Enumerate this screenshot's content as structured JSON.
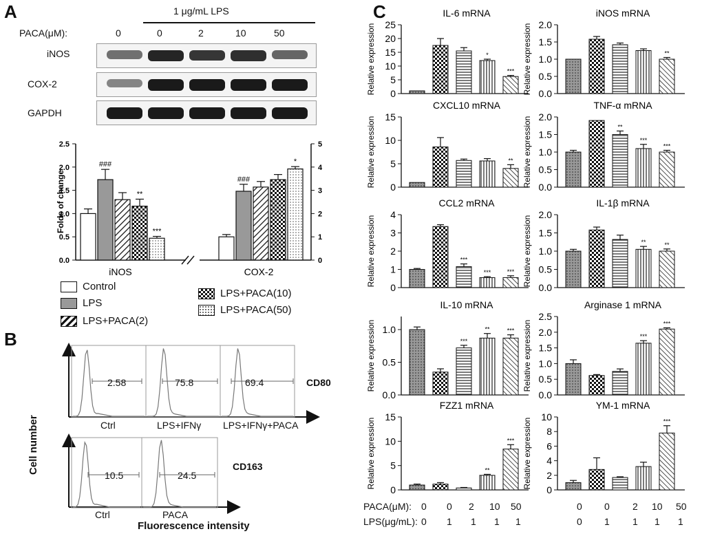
{
  "panel_labels": {
    "a": "A",
    "b": "B",
    "c": "C"
  },
  "western": {
    "lps_header": "1 μg/mL LPS",
    "paca_label": "PACA(μM):",
    "doses": [
      "0",
      "0",
      "2",
      "10",
      "50"
    ],
    "blots": [
      {
        "name": "iNOS",
        "intensity": [
          0.55,
          0.9,
          0.82,
          0.85,
          0.6
        ]
      },
      {
        "name": "COX-2",
        "intensity": [
          0.45,
          0.95,
          0.95,
          0.95,
          0.95
        ]
      },
      {
        "name": "GAPDH",
        "intensity": [
          0.95,
          0.95,
          0.95,
          0.95,
          0.95
        ]
      }
    ]
  },
  "legend": {
    "items": [
      "Control",
      "LPS",
      "LPS+PACA(2)",
      "LPS+PACA(10)",
      "LPS+PACA(50)"
    ]
  },
  "flow": {
    "y_label": "Cell number",
    "x_label": "Fluorescence intensity",
    "cd80": {
      "marker": "CD80",
      "values": [
        "2.58",
        "75.8",
        "69.4"
      ],
      "labels": [
        "Ctrl",
        "LPS+IFNγ",
        "LPS+IFNγ+PACA"
      ]
    },
    "cd163": {
      "marker": "CD163",
      "values": [
        "10.5",
        "24.5"
      ],
      "labels": [
        "Ctrl",
        "PACA"
      ]
    }
  },
  "bottom_axis": {
    "paca_label": "PACA(μM):",
    "lps_label": "LPS(μg/mL):",
    "paca": [
      "0",
      "0",
      "2",
      "10",
      "50"
    ],
    "lps": [
      "0",
      "1",
      "1",
      "1",
      "1"
    ]
  },
  "chart_data": [
    {
      "type": "bar",
      "title": "",
      "ylabel": "Folds of change",
      "categories": [
        "iNOS",
        "COX-2"
      ],
      "series": [
        {
          "name": "Control",
          "values": [
            1.0,
            0.5
          ]
        },
        {
          "name": "LPS",
          "values": [
            1.73,
            1.48
          ]
        },
        {
          "name": "LPS+PACA(2)",
          "values": [
            1.3,
            1.57
          ]
        },
        {
          "name": "LPS+PACA(10)",
          "values": [
            1.16,
            1.73
          ]
        },
        {
          "name": "LPS+PACA(50)",
          "values": [
            0.47,
            1.96
          ]
        }
      ],
      "errors": [
        [
          0.1,
          0.22,
          0.15,
          0.15,
          0.04
        ],
        [
          0.05,
          0.15,
          0.12,
          0.11,
          0.05
        ]
      ],
      "marks": [
        [
          "",
          "###",
          "",
          "**",
          "***"
        ],
        [
          "",
          "###",
          "",
          "",
          "*"
        ]
      ],
      "ylim": [
        0,
        2.5
      ],
      "yticks": [
        "0.0",
        "0.5",
        "1.0",
        "1.5",
        "2.0",
        "2.5"
      ],
      "y2lim": [
        0,
        5
      ],
      "y2ticks": [
        "0",
        "1",
        "2",
        "3",
        "4",
        "5"
      ]
    },
    {
      "type": "bar",
      "title": "IL-6 mRNA",
      "ylabel": "Relative expression",
      "values": [
        1,
        17.5,
        15.5,
        12,
        6.2
      ],
      "errors": [
        0,
        2.5,
        1.2,
        0.5,
        0.4
      ],
      "marks": [
        "",
        "",
        "",
        "*",
        "***"
      ],
      "ylim": [
        0,
        25
      ],
      "yticks": [
        "0",
        "5",
        "10",
        "15",
        "20",
        "25"
      ]
    },
    {
      "type": "bar",
      "title": "iNOS mRNA",
      "ylabel": "Relative expression",
      "values": [
        1,
        1.58,
        1.42,
        1.25,
        1.0
      ],
      "errors": [
        0,
        0.08,
        0.05,
        0.05,
        0.05
      ],
      "marks": [
        "",
        "",
        "",
        "",
        "**"
      ],
      "ylim": [
        0,
        2.0
      ],
      "yticks": [
        "0.0",
        "0.5",
        "1.0",
        "1.5",
        "2.0"
      ]
    },
    {
      "type": "bar",
      "title": "CXCL10 mRNA",
      "ylabel": "Relative expression",
      "values": [
        1,
        8.6,
        5.7,
        5.6,
        4.0
      ],
      "errors": [
        0,
        2.0,
        0.3,
        0.5,
        0.8
      ],
      "marks": [
        "",
        "",
        "",
        "",
        "**"
      ],
      "ylim": [
        0,
        15
      ],
      "yticks": [
        "0",
        "5",
        "10",
        "15"
      ]
    },
    {
      "type": "bar",
      "title": "TNF-α mRNA",
      "ylabel": "Relative expression",
      "values": [
        1,
        1.9,
        1.5,
        1.1,
        1.0
      ],
      "errors": [
        0.05,
        0,
        0.1,
        0.12,
        0.05
      ],
      "marks": [
        "",
        "",
        "**",
        "***",
        "***"
      ],
      "ylim": [
        0,
        2.0
      ],
      "yticks": [
        "0.0",
        "0.5",
        "1.0",
        "1.5",
        "2.0"
      ]
    },
    {
      "type": "bar",
      "title": "CCL2 mRNA",
      "ylabel": "Relative expression",
      "values": [
        1,
        3.35,
        1.15,
        0.55,
        0.55
      ],
      "errors": [
        0.05,
        0.1,
        0.15,
        0.05,
        0.1
      ],
      "marks": [
        "",
        "",
        "***",
        "***",
        "***"
      ],
      "ylim": [
        0,
        4
      ],
      "yticks": [
        "0",
        "1",
        "2",
        "3",
        "4"
      ]
    },
    {
      "type": "bar",
      "title": "IL-1β mRNA",
      "ylabel": "Relative expression",
      "values": [
        1,
        1.58,
        1.32,
        1.05,
        1.0
      ],
      "errors": [
        0.05,
        0.08,
        0.12,
        0.08,
        0.06
      ],
      "marks": [
        "",
        "",
        "",
        "**",
        "**"
      ],
      "ylim": [
        0,
        2.0
      ],
      "yticks": [
        "0.0",
        "0.5",
        "1.0",
        "1.5",
        "2.0"
      ]
    },
    {
      "type": "bar",
      "title": "IL-10 mRNA",
      "ylabel": "Relative expression",
      "values": [
        1.0,
        0.35,
        0.72,
        0.87,
        0.87
      ],
      "errors": [
        0.04,
        0.05,
        0.04,
        0.07,
        0.05
      ],
      "marks": [
        "",
        "",
        "***",
        "**",
        "***"
      ],
      "ylim": [
        0,
        1.2
      ],
      "yticks": [
        "0.0",
        "0.5",
        "1.0"
      ]
    },
    {
      "type": "bar",
      "title": "Arginase 1 mRNA",
      "ylabel": "Relative expression",
      "values": [
        1.0,
        0.62,
        0.75,
        1.65,
        2.1
      ],
      "errors": [
        0.12,
        0.03,
        0.08,
        0.08,
        0.04
      ],
      "marks": [
        "",
        "",
        "",
        "***",
        "***"
      ],
      "ylim": [
        0,
        2.5
      ],
      "yticks": [
        "0.0",
        "0.5",
        "1.0",
        "1.5",
        "2.0",
        "2.5"
      ]
    },
    {
      "type": "bar",
      "title": "FZZ1 mRNA",
      "ylabel": "Relative expression",
      "values": [
        1.0,
        1.2,
        0.4,
        3.0,
        8.4
      ],
      "errors": [
        0.2,
        0.3,
        0.1,
        0.2,
        0.9
      ],
      "marks": [
        "",
        "",
        "",
        "**",
        "***"
      ],
      "ylim": [
        0,
        15
      ],
      "yticks": [
        "0",
        "5",
        "10",
        "15"
      ]
    },
    {
      "type": "bar",
      "title": "YM-1 mRNA",
      "ylabel": "Relative expression",
      "values": [
        1.0,
        2.8,
        1.7,
        3.2,
        7.8
      ],
      "errors": [
        0.3,
        1.6,
        0.1,
        0.6,
        1.0
      ],
      "marks": [
        "",
        "",
        "",
        "",
        "***"
      ],
      "ylim": [
        0,
        10
      ],
      "yticks": [
        "0",
        "2",
        "4",
        "6",
        "8",
        "10"
      ]
    }
  ]
}
